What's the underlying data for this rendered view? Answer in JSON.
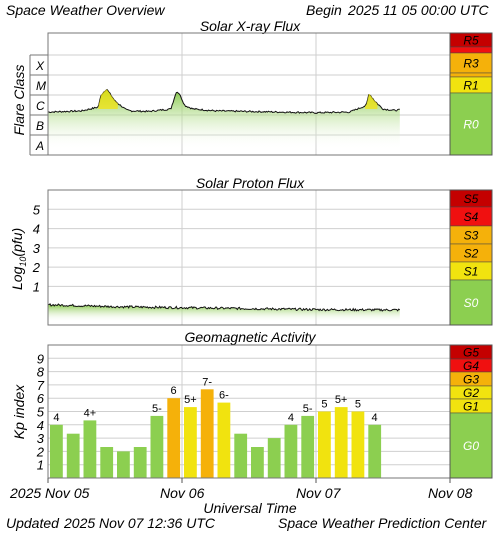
{
  "header": {
    "title": "Space Weather Overview",
    "begin_label": "Begin",
    "begin_value": "2025 11 05 00:00 UTC"
  },
  "footer": {
    "updated_label": "Updated",
    "updated_value": "2025 Nov 07 12:36 UTC",
    "source": "Space Weather Prediction Center"
  },
  "colors": {
    "grid": "#cfcfcf",
    "green": "#8ccf50",
    "yellow": "#f1e30f",
    "orange": "#f5b10a",
    "red": "#f01010",
    "darkred": "#c40000"
  },
  "chart_data": [
    {
      "type": "line",
      "title": "Solar X-ray Flux",
      "ylabel": "Flare Class",
      "y_scale": "log",
      "y_tick_labels": [
        "A",
        "B",
        "C",
        "M",
        "X"
      ],
      "scale_labels": [
        "R5",
        "R3",
        "R1",
        "R0"
      ],
      "x_tick_labels": [
        "2025 Nov 05",
        "Nov 06",
        "Nov 07",
        "Nov 08"
      ],
      "series": [
        {
          "hours": [
            0,
            3,
            6,
            9,
            9.5,
            10.5,
            12,
            13,
            14,
            15,
            18,
            22,
            23,
            23.5,
            24.5,
            26,
            30,
            36,
            42,
            48,
            54,
            57,
            57.5,
            58.5,
            60,
            62,
            63
          ],
          "flux_class": [
            "C1.4",
            "C1.5",
            "C1.6",
            "C2.5",
            "M1.0",
            "M2.0",
            "C5.0",
            "C3.0",
            "C1.8",
            "C1.6",
            "C1.5",
            "C2.0",
            "M1.5",
            "M1.2",
            "C3.0",
            "C2.0",
            "C1.6",
            "C1.5",
            "C1.4",
            "C1.3",
            "C1.4",
            "C3.0",
            "M1.2",
            "C5.0",
            "C2.0",
            "C1.7",
            "C1.8"
          ]
        }
      ]
    },
    {
      "type": "line",
      "title": "Solar Proton Flux",
      "ylabel": "Log10(pfu)",
      "ylabel_main": "Log",
      "ylabel_sub": "10",
      "ylabel_rest": "(pfu)",
      "y_tick_labels": [
        "1",
        "2",
        "3",
        "4",
        "5"
      ],
      "ylim": [
        -1,
        6
      ],
      "scale_labels": [
        "S5",
        "S4",
        "S3",
        "S2",
        "S1",
        "S0"
      ],
      "series": [
        {
          "hours": [
            0,
            6,
            12,
            24,
            36,
            48,
            63
          ],
          "log10_pfu": [
            0.05,
            0.0,
            -0.05,
            -0.1,
            -0.15,
            -0.2,
            -0.22
          ]
        }
      ]
    },
    {
      "type": "bar",
      "title": "Geomagnetic Activity",
      "ylabel": "Kp index",
      "xlabel": "Universal Time",
      "ylim": [
        0,
        10
      ],
      "y_tick_labels": [
        "1",
        "2",
        "3",
        "4",
        "5",
        "6",
        "7",
        "8",
        "9"
      ],
      "scale_labels": [
        "G5",
        "G4",
        "G3",
        "G2",
        "G1",
        "G0"
      ],
      "bar_labels": [
        "4",
        "",
        "4+",
        "",
        "",
        "",
        "5-",
        "6",
        "5+",
        "7-",
        "6-",
        "",
        "",
        "",
        "4",
        "5-",
        "5",
        "5+",
        "5",
        "4"
      ],
      "values": [
        4.0,
        3.33,
        4.33,
        2.33,
        2.0,
        2.33,
        4.67,
        6.0,
        5.33,
        6.67,
        5.67,
        3.33,
        2.33,
        3.0,
        4.0,
        4.67,
        5.0,
        5.33,
        5.0,
        4.0
      ]
    }
  ]
}
